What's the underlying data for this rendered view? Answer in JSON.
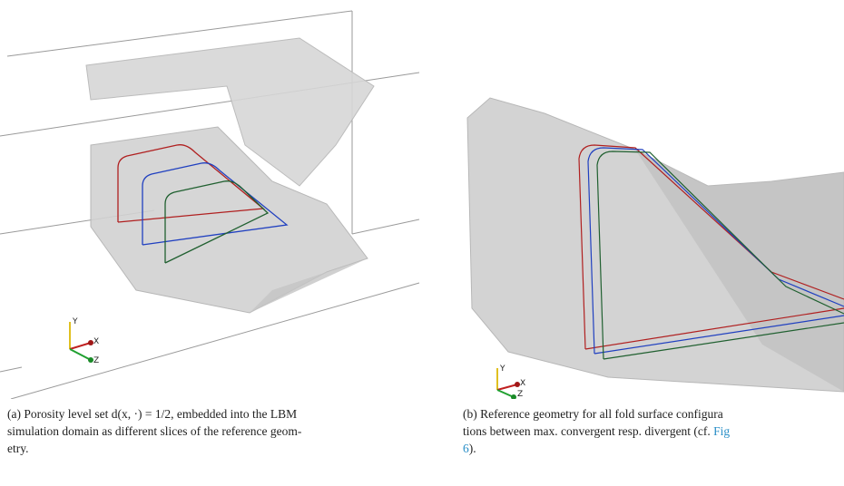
{
  "figure_a": {
    "axes": {
      "y": "Y",
      "x": "X",
      "z": "Z"
    },
    "caption_lines": [
      "(a) Porosity level set d(x, ·) = 1/2, embedded into the LBM",
      "simulation domain as different slices of the reference geom-",
      "etry."
    ]
  },
  "figure_b": {
    "axes": {
      "y": "Y",
      "x": "X",
      "z": "Z"
    },
    "caption_line1": "(b) Reference geometry for all fold surface configura",
    "caption_line2": "tions between max. convergent resp. divergent (cf. ",
    "caption_link1": "Fig",
    "caption_link2": "6",
    "caption_line3_end": ")."
  }
}
